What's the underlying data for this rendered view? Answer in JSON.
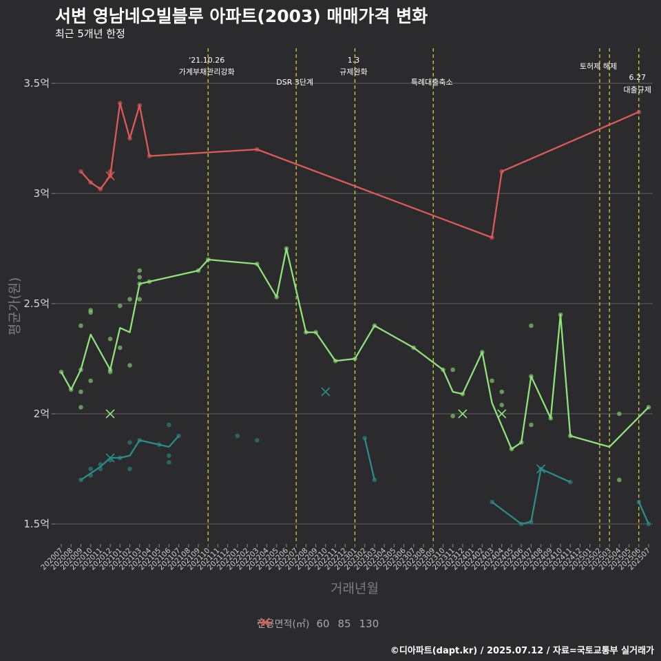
{
  "chart_data": {
    "type": "line",
    "title": "서변 영남네오빌블루 아파트(2003) 매매가격 변화",
    "subtitle": "최근 5개년 한정",
    "xlabel": "거래년월",
    "ylabel": "평균가(원)",
    "caption": "©디아파트(dapt.kr) / 2025.07.12 / 자료=국토교통부 실거래가",
    "legend_title": "전용면적(㎡)",
    "legend_position": "bottom",
    "grid": "horizontal",
    "ylim": [
      1.42,
      3.65
    ],
    "yticks": [
      {
        "value": 1.5,
        "label": "1.5억"
      },
      {
        "value": 2.0,
        "label": "2억"
      },
      {
        "value": 2.5,
        "label": "2.5억"
      },
      {
        "value": 3.0,
        "label": "3억"
      },
      {
        "value": 3.5,
        "label": "3.5억"
      }
    ],
    "categories": [
      "202007",
      "202008",
      "202009",
      "202010",
      "202011",
      "202012",
      "202101",
      "202102",
      "202103",
      "202104",
      "202105",
      "202106",
      "202107",
      "202108",
      "202109",
      "202110",
      "202111",
      "202112",
      "202201",
      "202202",
      "202203",
      "202204",
      "202205",
      "202206",
      "202207",
      "202208",
      "202209",
      "202210",
      "202211",
      "202212",
      "202301",
      "202302",
      "202303",
      "202304",
      "202305",
      "202306",
      "202307",
      "202308",
      "202309",
      "202310",
      "202311",
      "202312",
      "202401",
      "202402",
      "202403",
      "202404",
      "202405",
      "202406",
      "202407",
      "202408",
      "202409",
      "202410",
      "202411",
      "202412",
      "202501",
      "202502",
      "202503",
      "202504",
      "202505",
      "202506",
      "202507"
    ],
    "events": [
      {
        "x": "202110",
        "label": [
          "'21.10.26",
          "가계부채관리강화"
        ],
        "level": 0
      },
      {
        "x": "202207",
        "label": [
          "DSR 3단계"
        ],
        "level": 1
      },
      {
        "x": "202301",
        "label": [
          "1.3",
          "규제완화"
        ],
        "level": 0
      },
      {
        "x": "202309",
        "label": [
          "특례대출축소"
        ],
        "level": 1
      },
      {
        "x": "202502",
        "label": [
          "토허제 해제"
        ],
        "level": 2
      },
      {
        "x": "202503",
        "label": [],
        "level": 2
      },
      {
        "x": "202506",
        "label": [
          "6.27",
          "대출규제"
        ],
        "level": 3
      }
    ],
    "series": [
      {
        "name": "60",
        "color": "#2a8f8c",
        "segments": [
          [
            [
              "202009",
              1.7
            ],
            [
              "202010",
              1.73
            ],
            [
              "202011",
              1.76
            ],
            [
              "202012",
              1.8
            ],
            [
              "202101",
              1.8
            ],
            [
              "202102",
              1.81
            ],
            [
              "202103",
              1.88
            ],
            [
              "202105",
              1.86
            ],
            [
              "202106",
              1.85
            ],
            [
              "202107",
              1.9
            ]
          ],
          [
            [
              "202302",
              1.89
            ],
            [
              "202303",
              1.7
            ]
          ],
          [
            [
              "202403",
              1.6
            ],
            [
              "202406",
              1.5
            ],
            [
              "202407",
              1.51
            ],
            [
              "202408",
              1.75
            ],
            [
              "202411",
              1.69
            ]
          ],
          [
            [
              "202506",
              1.6
            ],
            [
              "202507",
              1.5
            ]
          ]
        ],
        "scatter": [
          [
            "202009",
            1.7
          ],
          [
            "202010",
            1.72
          ],
          [
            "202010",
            1.75
          ],
          [
            "202011",
            1.75
          ],
          [
            "202011",
            1.77
          ],
          [
            "202012",
            1.79
          ],
          [
            "202101",
            1.8
          ],
          [
            "202102",
            1.87
          ],
          [
            "202102",
            1.75
          ],
          [
            "202103",
            1.88
          ],
          [
            "202105",
            1.86
          ],
          [
            "202106",
            1.95
          ],
          [
            "202106",
            1.81
          ],
          [
            "202106",
            1.78
          ],
          [
            "202107",
            1.9
          ],
          [
            "202201",
            1.9
          ],
          [
            "202203",
            1.88
          ],
          [
            "202302",
            1.89
          ],
          [
            "202303",
            1.7
          ],
          [
            "202403",
            1.6
          ],
          [
            "202406",
            1.5
          ],
          [
            "202407",
            1.51
          ],
          [
            "202408",
            1.75
          ],
          [
            "202411",
            1.69
          ],
          [
            "202506",
            1.6
          ],
          [
            "202507",
            1.5
          ]
        ],
        "cancelled": [
          [
            "202012",
            1.8
          ],
          [
            "202210",
            2.1
          ],
          [
            "202408",
            1.75
          ]
        ]
      },
      {
        "name": "85",
        "color": "#8fe37a",
        "segments": [
          [
            [
              "202007",
              2.19
            ],
            [
              "202008",
              2.11
            ],
            [
              "202009",
              2.2
            ],
            [
              "202010",
              2.36
            ],
            [
              "202012",
              2.2
            ],
            [
              "202101",
              2.39
            ],
            [
              "202102",
              2.37
            ],
            [
              "202103",
              2.59
            ],
            [
              "202104",
              2.6
            ],
            [
              "202109",
              2.65
            ],
            [
              "202110",
              2.7
            ],
            [
              "202203",
              2.68
            ],
            [
              "202205",
              2.53
            ],
            [
              "202206",
              2.75
            ],
            [
              "202208",
              2.37
            ],
            [
              "202209",
              2.37
            ],
            [
              "202211",
              2.24
            ],
            [
              "202301",
              2.25
            ],
            [
              "202303",
              2.4
            ],
            [
              "202307",
              2.3
            ],
            [
              "202310",
              2.2
            ],
            [
              "202311",
              2.1
            ],
            [
              "202312",
              2.09
            ],
            [
              "202402",
              2.28
            ],
            [
              "202403",
              2.05
            ],
            [
              "202405",
              1.84
            ],
            [
              "202406",
              1.87
            ],
            [
              "202407",
              2.17
            ],
            [
              "202409",
              1.98
            ],
            [
              "202410",
              2.45
            ],
            [
              "202411",
              1.9
            ],
            [
              "202503",
              1.85
            ],
            [
              "202507",
              2.03
            ]
          ]
        ],
        "scatter": [
          [
            "202007",
            2.19
          ],
          [
            "202008",
            2.11
          ],
          [
            "202009",
            2.4
          ],
          [
            "202009",
            2.2
          ],
          [
            "202009",
            2.1
          ],
          [
            "202009",
            2.03
          ],
          [
            "202010",
            2.47
          ],
          [
            "202010",
            2.46
          ],
          [
            "202010",
            2.15
          ],
          [
            "202012",
            2.34
          ],
          [
            "202012",
            2.2
          ],
          [
            "202012",
            2.19
          ],
          [
            "202101",
            2.49
          ],
          [
            "202101",
            2.3
          ],
          [
            "202102",
            2.52
          ],
          [
            "202102",
            2.22
          ],
          [
            "202103",
            2.65
          ],
          [
            "202103",
            2.62
          ],
          [
            "202103",
            2.59
          ],
          [
            "202103",
            2.52
          ],
          [
            "202104",
            2.6
          ],
          [
            "202109",
            2.65
          ],
          [
            "202110",
            2.7
          ],
          [
            "202203",
            2.68
          ],
          [
            "202205",
            2.53
          ],
          [
            "202206",
            2.75
          ],
          [
            "202208",
            2.37
          ],
          [
            "202209",
            2.37
          ],
          [
            "202211",
            2.24
          ],
          [
            "202301",
            2.25
          ],
          [
            "202303",
            2.4
          ],
          [
            "202307",
            2.3
          ],
          [
            "202310",
            2.2
          ],
          [
            "202311",
            2.2
          ],
          [
            "202311",
            1.99
          ],
          [
            "202312",
            2.09
          ],
          [
            "202402",
            2.28
          ],
          [
            "202403",
            2.15
          ],
          [
            "202404",
            2.1
          ],
          [
            "202404",
            2.04
          ],
          [
            "202405",
            1.84
          ],
          [
            "202406",
            1.87
          ],
          [
            "202407",
            2.4
          ],
          [
            "202407",
            1.95
          ],
          [
            "202407",
            2.17
          ],
          [
            "202409",
            1.98
          ],
          [
            "202410",
            2.45
          ],
          [
            "202411",
            1.9
          ],
          [
            "202504",
            2.0
          ],
          [
            "202504",
            1.7
          ],
          [
            "202507",
            2.03
          ]
        ],
        "cancelled": [
          [
            "202012",
            2.0
          ],
          [
            "202312",
            2.0
          ],
          [
            "202404",
            2.0
          ]
        ]
      },
      {
        "name": "130",
        "color": "#e05a5a",
        "segments": [
          [
            [
              "202009",
              3.1
            ],
            [
              "202010",
              3.05
            ],
            [
              "202011",
              3.02
            ],
            [
              "202012",
              3.08
            ],
            [
              "202101",
              3.41
            ],
            [
              "202102",
              3.25
            ],
            [
              "202103",
              3.4
            ],
            [
              "202104",
              3.17
            ],
            [
              "202203",
              3.2
            ],
            [
              "202403",
              2.8
            ],
            [
              "202404",
              3.1
            ],
            [
              "202506",
              3.37
            ]
          ]
        ],
        "scatter": [
          [
            "202009",
            3.1
          ],
          [
            "202010",
            3.05
          ],
          [
            "202011",
            3.02
          ],
          [
            "202012",
            3.1
          ],
          [
            "202012",
            3.08
          ],
          [
            "202101",
            3.41
          ],
          [
            "202102",
            3.25
          ],
          [
            "202103",
            3.4
          ],
          [
            "202104",
            3.17
          ],
          [
            "202203",
            3.2
          ],
          [
            "202403",
            2.8
          ],
          [
            "202404",
            3.1
          ],
          [
            "202506",
            3.37
          ]
        ],
        "cancelled": [
          [
            "202012",
            3.08
          ]
        ]
      }
    ]
  }
}
